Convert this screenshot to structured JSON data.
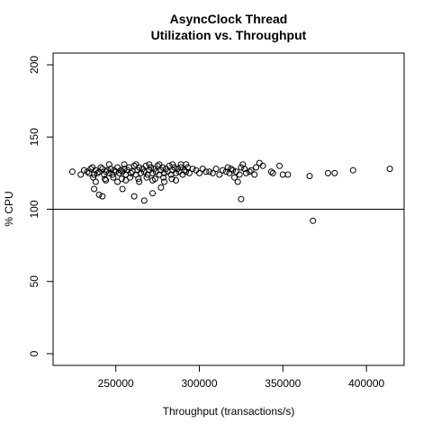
{
  "chart_data": {
    "type": "scatter",
    "title_line1": "AsyncClock Thread",
    "title_line2": "Utilization vs. Throughput",
    "xlabel": "Throughput (transactions/s)",
    "ylabel": "% CPU",
    "xlim": [
      220000,
      415000
    ],
    "ylim": [
      0,
      200
    ],
    "x_ticks": [
      250000,
      300000,
      350000,
      400000
    ],
    "x_tick_labels": [
      "250000",
      "300000",
      "350000",
      "400000"
    ],
    "y_ticks": [
      0,
      50,
      100,
      150,
      200
    ],
    "y_tick_labels": [
      "0",
      "50",
      "100",
      "150",
      "200"
    ],
    "reference_line_y": 100,
    "grid": false,
    "marker": "open-circle",
    "colors": {
      "points": "#000000",
      "axes": "#000000",
      "background": "#ffffff"
    },
    "points": [
      [
        224000,
        126
      ],
      [
        229000,
        124
      ],
      [
        231000,
        127
      ],
      [
        233000,
        126
      ],
      [
        234000,
        125
      ],
      [
        235000,
        128
      ],
      [
        236000,
        129
      ],
      [
        237000,
        124
      ],
      [
        238000,
        127
      ],
      [
        239000,
        125
      ],
      [
        240000,
        126
      ],
      [
        241000,
        129
      ],
      [
        242000,
        128
      ],
      [
        243000,
        124
      ],
      [
        244000,
        126
      ],
      [
        245000,
        127
      ],
      [
        246000,
        125
      ],
      [
        247000,
        128
      ],
      [
        248000,
        124
      ],
      [
        249000,
        127
      ],
      [
        250000,
        126
      ],
      [
        251000,
        129
      ],
      [
        252000,
        125
      ],
      [
        253000,
        127
      ],
      [
        254000,
        126
      ],
      [
        255000,
        128
      ],
      [
        256000,
        124
      ],
      [
        257000,
        127
      ],
      [
        258000,
        129
      ],
      [
        259000,
        125
      ],
      [
        260000,
        126
      ],
      [
        261000,
        130
      ],
      [
        262000,
        124
      ],
      [
        263000,
        127
      ],
      [
        264000,
        129
      ],
      [
        265000,
        125
      ],
      [
        266000,
        128
      ],
      [
        267000,
        126
      ],
      [
        268000,
        130
      ],
      [
        269000,
        124
      ],
      [
        270000,
        127
      ],
      [
        271000,
        129
      ],
      [
        272000,
        125
      ],
      [
        273000,
        128
      ],
      [
        274000,
        126
      ],
      [
        275000,
        130
      ],
      [
        276000,
        124
      ],
      [
        277000,
        127
      ],
      [
        278000,
        129
      ],
      [
        279000,
        125
      ],
      [
        280000,
        128
      ],
      [
        281000,
        126
      ],
      [
        282000,
        130
      ],
      [
        283000,
        124
      ],
      [
        284000,
        127
      ],
      [
        285000,
        129
      ],
      [
        286000,
        125
      ],
      [
        287000,
        128
      ],
      [
        288000,
        126
      ],
      [
        289000,
        129
      ],
      [
        290000,
        124
      ],
      [
        291000,
        127
      ],
      [
        292000,
        126
      ],
      [
        293000,
        129
      ],
      [
        294000,
        125
      ],
      [
        296000,
        128
      ],
      [
        298000,
        127
      ],
      [
        300000,
        125
      ],
      [
        302000,
        128
      ],
      [
        304000,
        126
      ],
      [
        236500,
        122
      ],
      [
        243500,
        121
      ],
      [
        248500,
        122
      ],
      [
        253500,
        121
      ],
      [
        258500,
        122
      ],
      [
        263500,
        121
      ],
      [
        268500,
        122
      ],
      [
        273500,
        121
      ],
      [
        278500,
        122
      ],
      [
        283500,
        121
      ],
      [
        246000,
        131
      ],
      [
        255000,
        131
      ],
      [
        262000,
        131
      ],
      [
        270000,
        131
      ],
      [
        276000,
        131
      ],
      [
        284000,
        131
      ],
      [
        289000,
        131
      ],
      [
        292000,
        131
      ],
      [
        238000,
        119
      ],
      [
        244000,
        120
      ],
      [
        251000,
        119
      ],
      [
        256000,
        120
      ],
      [
        264000,
        119
      ],
      [
        272000,
        120
      ],
      [
        279000,
        119
      ],
      [
        286000,
        120
      ],
      [
        240000,
        110
      ],
      [
        242000,
        109
      ],
      [
        237000,
        114
      ],
      [
        254000,
        114
      ],
      [
        261000,
        109
      ],
      [
        267000,
        106
      ],
      [
        272000,
        111
      ],
      [
        277000,
        115
      ],
      [
        306000,
        126
      ],
      [
        308000,
        125
      ],
      [
        310000,
        128
      ],
      [
        312000,
        124
      ],
      [
        314000,
        127
      ],
      [
        316000,
        126
      ],
      [
        317000,
        129
      ],
      [
        318000,
        125
      ],
      [
        319000,
        128
      ],
      [
        320000,
        127
      ],
      [
        322000,
        126
      ],
      [
        324000,
        124
      ],
      [
        325000,
        129
      ],
      [
        326000,
        131
      ],
      [
        327000,
        128
      ],
      [
        328000,
        125
      ],
      [
        330000,
        126
      ],
      [
        331000,
        127
      ],
      [
        333000,
        124
      ],
      [
        334000,
        129
      ],
      [
        336000,
        132
      ],
      [
        338000,
        130
      ],
      [
        343000,
        126
      ],
      [
        344000,
        125
      ],
      [
        348000,
        130
      ],
      [
        350000,
        124
      ],
      [
        353000,
        124
      ],
      [
        323000,
        119
      ],
      [
        325000,
        107
      ],
      [
        321000,
        122
      ],
      [
        366000,
        123
      ],
      [
        368000,
        92
      ],
      [
        377000,
        125
      ],
      [
        381000,
        125
      ],
      [
        392000,
        127
      ],
      [
        414000,
        128
      ]
    ]
  }
}
